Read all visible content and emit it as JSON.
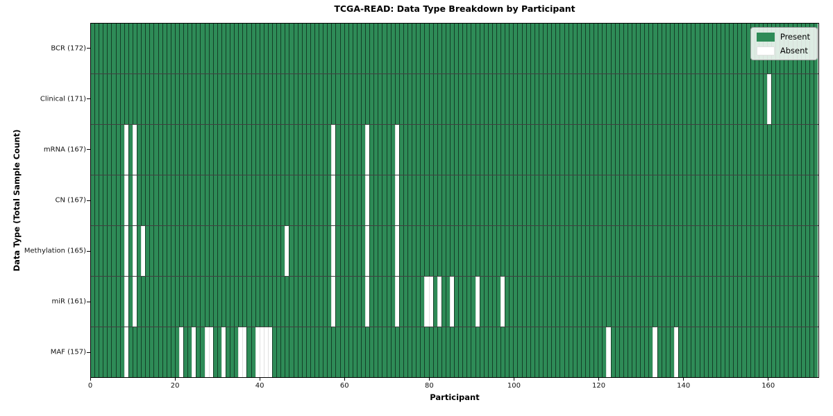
{
  "chart_data": {
    "type": "heatmap",
    "title": "TCGA-READ: Data Type Breakdown by Participant",
    "xlabel": "Participant",
    "ylabel": "Data Type (Total Sample Count)",
    "n_participants": 172,
    "x_ticks": [
      0,
      20,
      40,
      60,
      80,
      100,
      120,
      140,
      160
    ],
    "colors": {
      "present": "#2e8b57",
      "absent": "#ffffff"
    },
    "legend": [
      {
        "label": "Present",
        "color": "#2e8b57"
      },
      {
        "label": "Absent",
        "color": "#ffffff"
      }
    ],
    "legend_position": "upper right",
    "grid": "cell-borders",
    "rows": [
      {
        "label": "BCR (172)",
        "total_present": 172,
        "absent_participants": []
      },
      {
        "label": "Clinical (171)",
        "total_present": 171,
        "absent_participants": [
          160
        ]
      },
      {
        "label": "mRNA (167)",
        "total_present": 167,
        "absent_participants": [
          8,
          10,
          57,
          65,
          72
        ]
      },
      {
        "label": "CN (167)",
        "total_present": 167,
        "absent_participants": [
          8,
          10,
          57,
          65,
          72
        ]
      },
      {
        "label": "Methylation (165)",
        "total_present": 165,
        "absent_participants": [
          8,
          10,
          12,
          46,
          57,
          65,
          72
        ]
      },
      {
        "label": "miR (161)",
        "total_present": 161,
        "absent_participants": [
          8,
          10,
          57,
          65,
          72,
          79,
          80,
          82,
          85,
          91,
          97
        ]
      },
      {
        "label": "MAF (157)",
        "total_present": 157,
        "absent_participants": [
          8,
          21,
          24,
          27,
          28,
          31,
          35,
          36,
          39,
          40,
          41,
          42,
          122,
          133,
          138
        ]
      }
    ]
  }
}
